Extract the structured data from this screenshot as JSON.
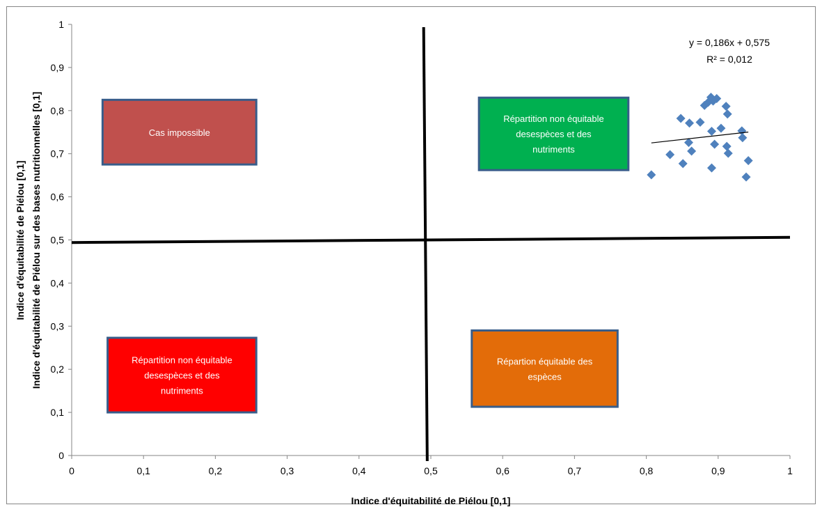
{
  "chart_data": {
    "type": "scatter",
    "title": "",
    "xlabel": "Indice d'équitabilité  de Piélou [0,1]",
    "ylabel_line1": "Indice d'équitabilité  de Piélou [0,1]",
    "ylabel_line2": "Indice d'équitabilité  de Piélou sur des bases nutritionnelles [0,1]",
    "xlim": [
      0,
      1
    ],
    "ylim": [
      0,
      1
    ],
    "x_ticks": [
      "0",
      "0,1",
      "0,2",
      "0,3",
      "0,4",
      "0,5",
      "0,6",
      "0,7",
      "0,8",
      "0,9",
      "1"
    ],
    "y_ticks": [
      "0",
      "0,1",
      "0,2",
      "0,3",
      "0,4",
      "0,5",
      "0,6",
      "0,7",
      "0,8",
      "0,9",
      "1"
    ],
    "grid": false,
    "legend": "none",
    "marker_color": "#4F81BD",
    "series": [
      {
        "points": [
          [
            0.807,
            0.651
          ],
          [
            0.833,
            0.698
          ],
          [
            0.848,
            0.782
          ],
          [
            0.851,
            0.677
          ],
          [
            0.859,
            0.726
          ],
          [
            0.86,
            0.771
          ],
          [
            0.863,
            0.706
          ],
          [
            0.875,
            0.773
          ],
          [
            0.881,
            0.812
          ],
          [
            0.886,
            0.819
          ],
          [
            0.89,
            0.831
          ],
          [
            0.891,
            0.752
          ],
          [
            0.891,
            0.667
          ],
          [
            0.893,
            0.822
          ],
          [
            0.895,
            0.722
          ],
          [
            0.898,
            0.828
          ],
          [
            0.904,
            0.759
          ],
          [
            0.911,
            0.81
          ],
          [
            0.912,
            0.717
          ],
          [
            0.913,
            0.792
          ],
          [
            0.914,
            0.701
          ],
          [
            0.933,
            0.753
          ],
          [
            0.934,
            0.737
          ],
          [
            0.939,
            0.646
          ],
          [
            0.942,
            0.684
          ]
        ]
      }
    ],
    "trendline": {
      "slope": 0.186,
      "intercept": 0.575,
      "x_range": [
        0.807,
        0.942
      ],
      "equation": "y = 0,186x + 0,575",
      "r2": "R² = 0,012"
    },
    "divider_lines": {
      "vertical": {
        "x_top": 0.49,
        "x_bottom": 0.495
      },
      "horizontal": {
        "y_left": 0.494,
        "y_right": 0.506
      }
    },
    "annotations": [
      {
        "text_lines": [
          "Cas impossible"
        ],
        "fill": "#C0504D",
        "x_range": [
          0.043,
          0.257
        ],
        "y_range": [
          0.675,
          0.825
        ]
      },
      {
        "text_lines": [
          "Répartition non équitable",
          "desespèces et des",
          "nutriments"
        ],
        "fill": "#00B050",
        "x_range": [
          0.567,
          0.775
        ],
        "y_range": [
          0.662,
          0.83
        ]
      },
      {
        "text_lines": [
          "Répartition non équitable",
          "desespèces et des",
          "nutriments"
        ],
        "fill": "#FF0000",
        "x_range": [
          0.05,
          0.257
        ],
        "y_range": [
          0.1,
          0.273
        ]
      },
      {
        "text_lines": [
          "Répartion équitable des",
          "espèces"
        ],
        "fill": "#E36C09",
        "x_range": [
          0.557,
          0.76
        ],
        "y_range": [
          0.113,
          0.29
        ]
      }
    ]
  }
}
